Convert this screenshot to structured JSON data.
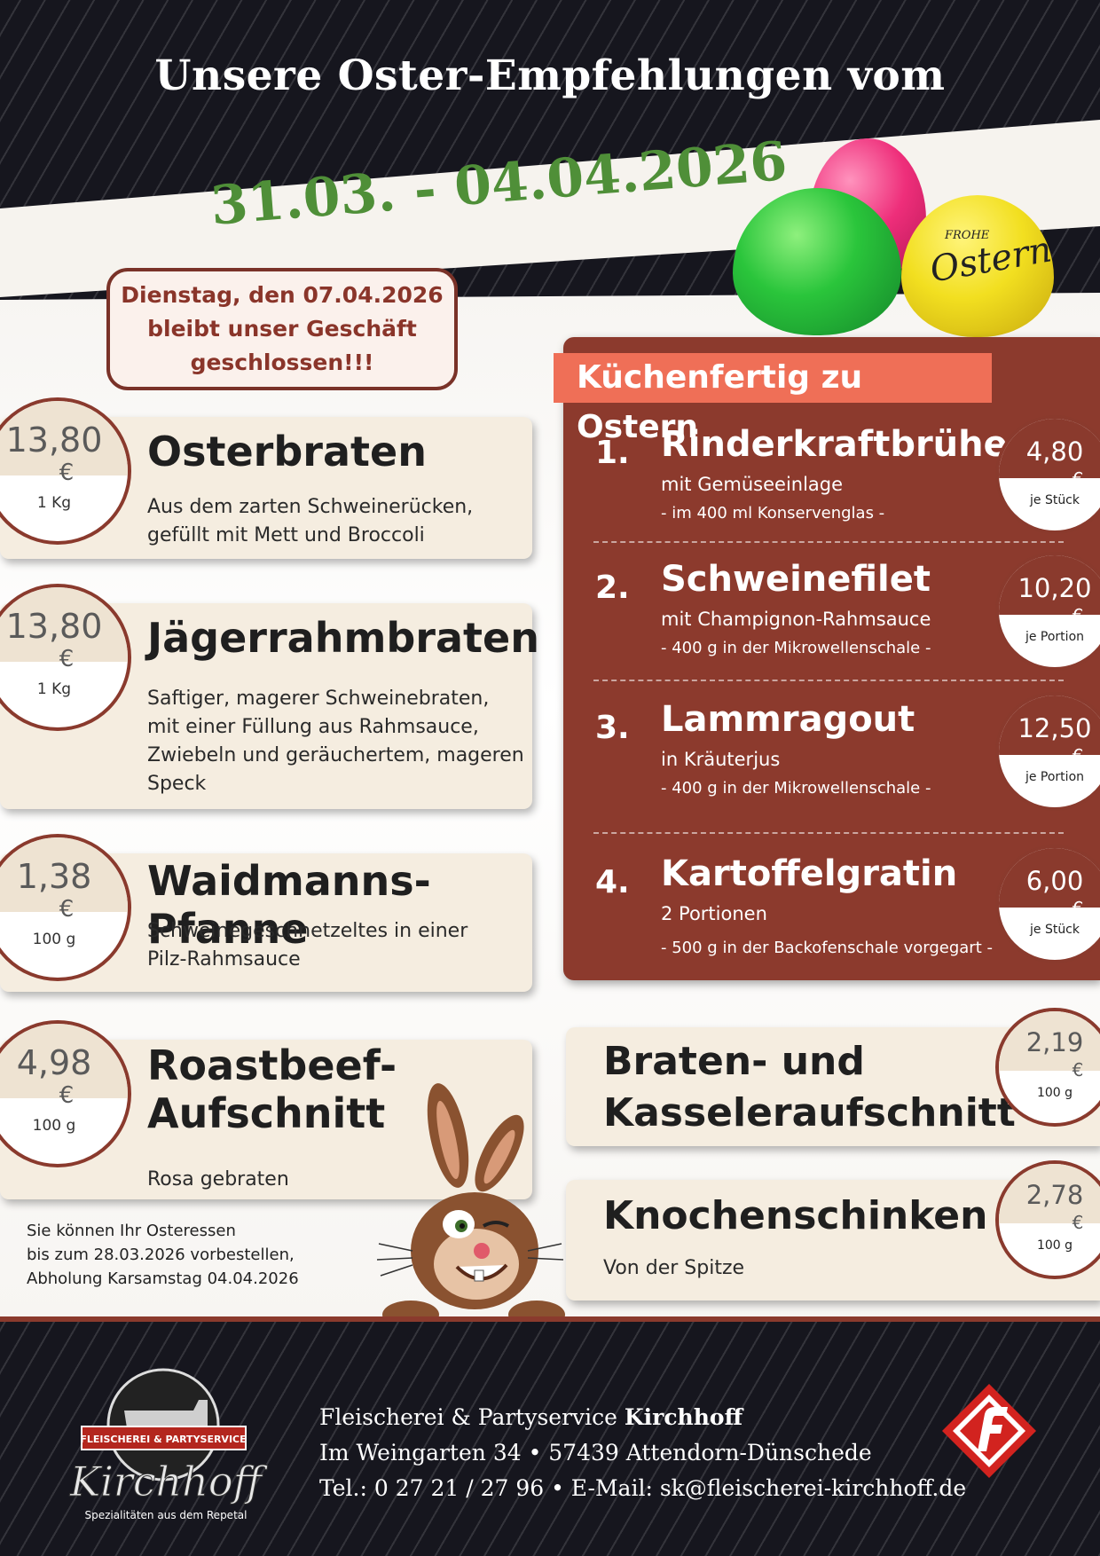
{
  "headline": "Unsere Oster-Empfehlungen vom",
  "date_range": "31.03. - 04.04.2026",
  "closed_notice": "Dienstag, den 07.04.2026\nbleibt unser Geschäft\ngeschlossen!!!",
  "eggs_text": {
    "small": "FROHE",
    "main": "Ostern"
  },
  "currency": "€",
  "left_products": [
    {
      "price": "13,80",
      "unit": "1 Kg",
      "title": "Osterbraten",
      "desc": "Aus dem zarten Schweinerücken,\ngefüllt mit Mett und Broccoli"
    },
    {
      "price": "13,80",
      "unit": "1 Kg",
      "title": "Jägerrahmbraten",
      "desc": "Saftiger, magerer Schweinebraten,\nmit einer Füllung aus Rahmsauce,\nZwiebeln und geräuchertem, mageren\nSpeck"
    },
    {
      "price": "1,38",
      "unit": "100 g",
      "title": "Waidmanns-Pfanne",
      "desc": "Schweinegeschnetzeltes in einer\nPilz-Rahmsauce"
    },
    {
      "price": "4,98",
      "unit": "100 g",
      "title": "Roastbeef-\nAufschnitt",
      "desc": "Rosa gebraten"
    }
  ],
  "kitchen": {
    "title": "Küchenfertig zu Ostern",
    "items": [
      {
        "num": "1.",
        "name": "Rinderkraftbrühe",
        "sub": "mit Gemüseeinlage",
        "note": "- im 400 ml Konservenglas -",
        "price": "4,80",
        "unit": "je Stück"
      },
      {
        "num": "2.",
        "name": "Schweinefilet",
        "sub": "mit Champignon-Rahmsauce",
        "note": "- 400 g in der Mikrowellenschale -",
        "price": "10,20",
        "unit": "je Portion"
      },
      {
        "num": "3.",
        "name": "Lammragout",
        "sub": "in Kräuterjus",
        "note": "- 400 g in der Mikrowellenschale -",
        "price": "12,50",
        "unit": "je Portion"
      },
      {
        "num": "4.",
        "name": "Kartoffelgratin",
        "sub": "2 Portionen",
        "note": "- 500 g in der Backofenschale vorgegart -",
        "price": "6,00",
        "unit": "je Stück"
      }
    ]
  },
  "right_products": [
    {
      "title": "Braten- und\nKasseleraufschnitt",
      "desc": "",
      "price": "2,19",
      "unit": "100 g"
    },
    {
      "title": "Knochenschinken",
      "desc": "Von der Spitze",
      "price": "2,78",
      "unit": "100 g"
    }
  ],
  "preorder_note": "Sie können Ihr Osteressen\nbis zum 28.03.2026 vorbestellen,\nAbholung Karsamstag 04.04.2026",
  "logo": {
    "banner": "FLEISCHEREI & PARTYSERVICE",
    "name": "Kirchhoff",
    "tagline": "Spezialitäten aus dem Repetal"
  },
  "footer": {
    "line1_prefix": "Fleischerei & Partyservice ",
    "line1_name": "Kirchhoff",
    "line2": "Im Weingarten 34 • 57439 Attendorn-Dünschede",
    "line3": "Tel.: 0 27 21 / 27 96 • E-Mail: sk@fleischerei-kirchhoff.de"
  },
  "colors": {
    "dark_bg": "#16161e",
    "accent_red": "#8c3a2d",
    "title_orange": "#ef6f57",
    "date_green": "#4f8f38",
    "card_beige": "#f5ede0"
  }
}
